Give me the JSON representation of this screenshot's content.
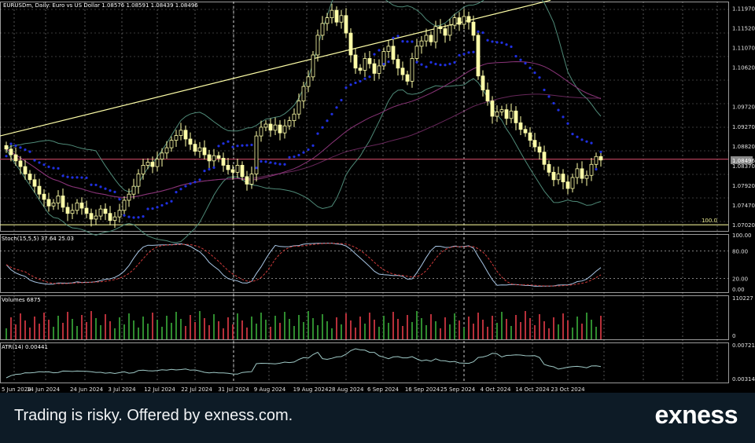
{
  "chart_data": {
    "type": "candlestick",
    "symbol": "EURUSDm",
    "timeframe": "Daily",
    "description": "Euro vs US Dollar",
    "ohlc_text": "1.08576 1.08591 1.08439 1.08496",
    "title": "EURUSDm, Daily:  Euro vs US Dollar  1.08576 1.08591 1.08439 1.08496",
    "current_price_label": "1.08496",
    "price_ticks": [
      "1.11970",
      "1.11520",
      "1.11070",
      "1.10620",
      "1.09720",
      "1.09270",
      "1.08820",
      "1.08370",
      "1.07920",
      "1.07470",
      "1.07020"
    ],
    "fib_label": "100.0",
    "date_ticks": [
      "5 Jun 2024",
      "14 Jun 2024",
      "24 Jun 2024",
      "3 Jul 2024",
      "12 Jul 2024",
      "22 Jul 2024",
      "31 Jul 2024",
      "9 Aug 2024",
      "19 Aug 2024",
      "28 Aug 2024",
      "6 Sep 2024",
      "16 Sep 2024",
      "25 Sep 2024",
      "4 Oct 2024",
      "14 Oct 2024",
      "23 Oct 2024"
    ],
    "closes": [
      1.0875,
      1.0862,
      1.0848,
      1.0835,
      1.0818,
      1.0805,
      1.079,
      1.0772,
      1.076,
      1.0745,
      1.0752,
      1.0768,
      1.0742,
      1.0728,
      1.0735,
      1.0752,
      1.074,
      1.0728,
      1.0715,
      1.0722,
      1.0738,
      1.0728,
      1.0712,
      1.072,
      1.0735,
      1.0758,
      1.0772,
      1.079,
      1.0818,
      1.0838,
      1.0845,
      1.0835,
      1.0852,
      1.0866,
      1.0878,
      1.0895,
      1.0906,
      1.0918,
      1.0898,
      1.0886,
      1.087,
      1.0878,
      1.0862,
      1.0848,
      1.086,
      1.0854,
      1.0838,
      1.0828,
      1.0822,
      1.0838,
      1.0812,
      1.0795,
      1.0818,
      1.0905,
      1.0925,
      1.0932,
      1.0918,
      1.093,
      1.0912,
      1.0928,
      1.094,
      1.0955,
      1.0985,
      1.1018,
      1.104,
      1.109,
      1.1135,
      1.1162,
      1.1175,
      1.1192,
      1.1165,
      1.118,
      1.114,
      1.109,
      1.106,
      1.1055,
      1.1082,
      1.107,
      1.1048,
      1.1065,
      1.1098,
      1.111,
      1.108,
      1.106,
      1.1045,
      1.103,
      1.1082,
      1.111,
      1.1122,
      1.1135,
      1.112,
      1.1155,
      1.115,
      1.1135,
      1.1158,
      1.1175,
      1.116,
      1.1178,
      1.1165,
      1.1135,
      1.1042,
      1.101,
      1.0985,
      1.095,
      1.096,
      1.0965,
      1.0945,
      1.0962,
      1.0935,
      1.092,
      1.0912,
      1.0895,
      1.088,
      1.0868,
      1.084,
      1.0822,
      1.0805,
      1.0818,
      1.08,
      1.0785,
      1.081,
      1.083,
      1.0808,
      1.0815,
      1.084,
      1.0858,
      1.085
    ],
    "support_price": 1.0702,
    "resistance_price": 1.0852,
    "volume_label": "Volumes 6875",
    "volume_ticks": [
      "110227",
      "0"
    ],
    "stoch_label": "Stoch(15,5,5) 37.64 25.03",
    "stoch_ticks": [
      "100.00",
      "80.00",
      "20.00",
      "0.00"
    ],
    "atr_label": "ATR(14) 0.00441",
    "atr_ticks": [
      "0.00721",
      "0.00314"
    ],
    "colors": {
      "bull_candle": "#ffffa8",
      "bear_candle": "#ffffa8",
      "parabolic_sar": "#2030e0",
      "bollinger": "#4f8a78",
      "moving_average": "#8a3478",
      "trendline": "#ffffa8",
      "horizontal_red": "#b04058",
      "horizontal_yellow": "#e8e890",
      "stoch_main": "#a9c7e6",
      "stoch_signal": "#d03a3a",
      "volume_up": "#2f8c2f",
      "volume_down": "#b8303a",
      "atr_line": "#9fc9c6",
      "grid": "#ffffff"
    }
  },
  "banner": {
    "disclaimer": "Trading is risky. Offered by exness.com.",
    "brand": "exness"
  }
}
